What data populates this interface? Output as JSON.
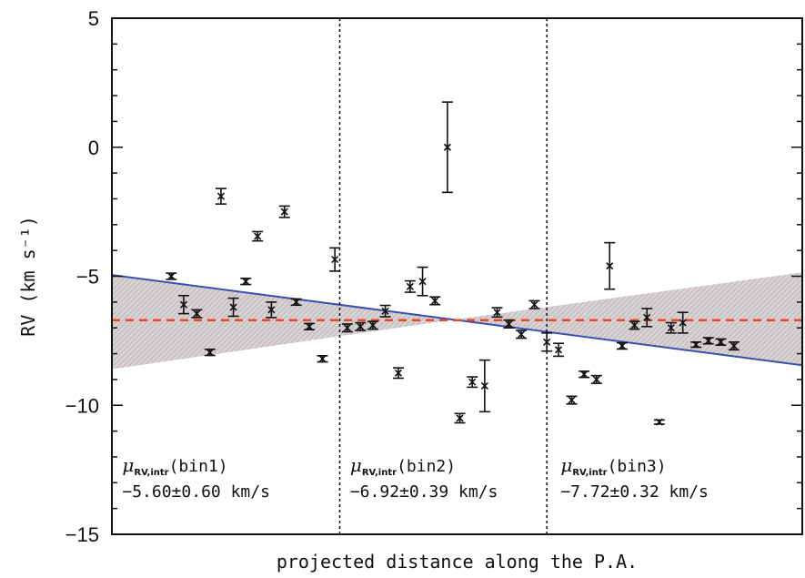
{
  "chart_data": {
    "type": "scatter",
    "title": "",
    "xlabel": "projected distance along the P.A.",
    "ylabel": "RV (km s⁻¹)",
    "xlim": [
      0,
      100
    ],
    "ylim": [
      -15,
      5
    ],
    "yticks": [
      5,
      0,
      -5,
      -10,
      -15
    ],
    "grid": false,
    "colors": {
      "points": "#111111",
      "fit_line": "#3a4fb0",
      "mean_line": "#e8472a",
      "band_fill": "#d9d3d3",
      "band_hatch": "#b5adad"
    },
    "points": [
      {
        "x": 8.6,
        "y": -5.0,
        "err": 0.12
      },
      {
        "x": 10.4,
        "y": -6.1,
        "err": 0.35
      },
      {
        "x": 12.3,
        "y": -6.45,
        "err": 0.15
      },
      {
        "x": 14.2,
        "y": -7.95,
        "err": 0.12
      },
      {
        "x": 15.8,
        "y": -1.9,
        "err": 0.3
      },
      {
        "x": 17.6,
        "y": -6.2,
        "err": 0.35
      },
      {
        "x": 19.4,
        "y": -5.2,
        "err": 0.12
      },
      {
        "x": 21.1,
        "y": -3.45,
        "err": 0.18
      },
      {
        "x": 23.1,
        "y": -6.3,
        "err": 0.3
      },
      {
        "x": 25.0,
        "y": -2.5,
        "err": 0.22
      },
      {
        "x": 26.7,
        "y": -6.0,
        "err": 0.12
      },
      {
        "x": 28.6,
        "y": -6.95,
        "err": 0.12
      },
      {
        "x": 30.5,
        "y": -8.2,
        "err": 0.12
      },
      {
        "x": 32.3,
        "y": -4.35,
        "err": 0.45
      },
      {
        "x": 34.1,
        "y": -7.0,
        "err": 0.15
      },
      {
        "x": 36.0,
        "y": -6.95,
        "err": 0.15
      },
      {
        "x": 37.8,
        "y": -6.9,
        "err": 0.15
      },
      {
        "x": 39.6,
        "y": -6.35,
        "err": 0.22
      },
      {
        "x": 41.5,
        "y": -8.75,
        "err": 0.2
      },
      {
        "x": 43.2,
        "y": -5.4,
        "err": 0.22
      },
      {
        "x": 45.0,
        "y": -5.2,
        "err": 0.55
      },
      {
        "x": 46.8,
        "y": -5.95,
        "err": 0.15
      },
      {
        "x": 48.6,
        "y": 0.0,
        "err": 1.75
      },
      {
        "x": 50.4,
        "y": -10.5,
        "err": 0.18
      },
      {
        "x": 52.2,
        "y": -9.1,
        "err": 0.2
      },
      {
        "x": 54.0,
        "y": -9.25,
        "err": 1.0
      },
      {
        "x": 55.8,
        "y": -6.4,
        "err": 0.18
      },
      {
        "x": 57.5,
        "y": -6.85,
        "err": 0.15
      },
      {
        "x": 59.3,
        "y": -7.25,
        "err": 0.15
      },
      {
        "x": 61.2,
        "y": -6.1,
        "err": 0.15
      },
      {
        "x": 63.0,
        "y": -7.55,
        "err": 0.35
      },
      {
        "x": 64.7,
        "y": -7.85,
        "err": 0.25
      },
      {
        "x": 66.6,
        "y": -9.8,
        "err": 0.15
      },
      {
        "x": 68.4,
        "y": -8.8,
        "err": 0.12
      },
      {
        "x": 70.2,
        "y": -9.0,
        "err": 0.15
      },
      {
        "x": 72.1,
        "y": -4.6,
        "err": 0.9
      },
      {
        "x": 73.9,
        "y": -7.7,
        "err": 0.12
      },
      {
        "x": 75.7,
        "y": -6.9,
        "err": 0.15
      },
      {
        "x": 77.5,
        "y": -6.6,
        "err": 0.35
      },
      {
        "x": 79.3,
        "y": -10.65,
        "err": 0.08
      },
      {
        "x": 81.0,
        "y": -7.0,
        "err": 0.2
      },
      {
        "x": 82.7,
        "y": -6.8,
        "err": 0.4
      },
      {
        "x": 84.6,
        "y": -7.65,
        "err": 0.1
      },
      {
        "x": 86.4,
        "y": -7.5,
        "err": 0.12
      },
      {
        "x": 88.2,
        "y": -7.55,
        "err": 0.12
      },
      {
        "x": 90.1,
        "y": -7.7,
        "err": 0.15
      }
    ],
    "fit_line": {
      "x": [
        0,
        100
      ],
      "y": [
        -4.95,
        -8.45
      ]
    },
    "mean_line": {
      "x": [
        0,
        100
      ],
      "y": [
        -6.7,
        -6.7
      ]
    },
    "band": {
      "x": [
        0,
        49,
        100
      ],
      "upper": [
        -4.95,
        -6.7,
        -4.85
      ],
      "lower": [
        -8.6,
        -6.7,
        -8.45
      ]
    },
    "bin_dividers": [
      33,
      63
    ],
    "bins": [
      {
        "mu_symbol": "μ",
        "mu_sub": "RV,intr",
        "name": "(bin1)",
        "value": "−5.60±0.60 km/s",
        "x": 1.5
      },
      {
        "mu_symbol": "μ",
        "mu_sub": "RV,intr",
        "name": "(bin2)",
        "value": "−6.92±0.39 km/s",
        "x": 34.5
      },
      {
        "mu_symbol": "μ",
        "mu_sub": "RV,intr",
        "name": "(bin3)",
        "value": "−7.72±0.32 km/s",
        "x": 65.0
      }
    ]
  }
}
